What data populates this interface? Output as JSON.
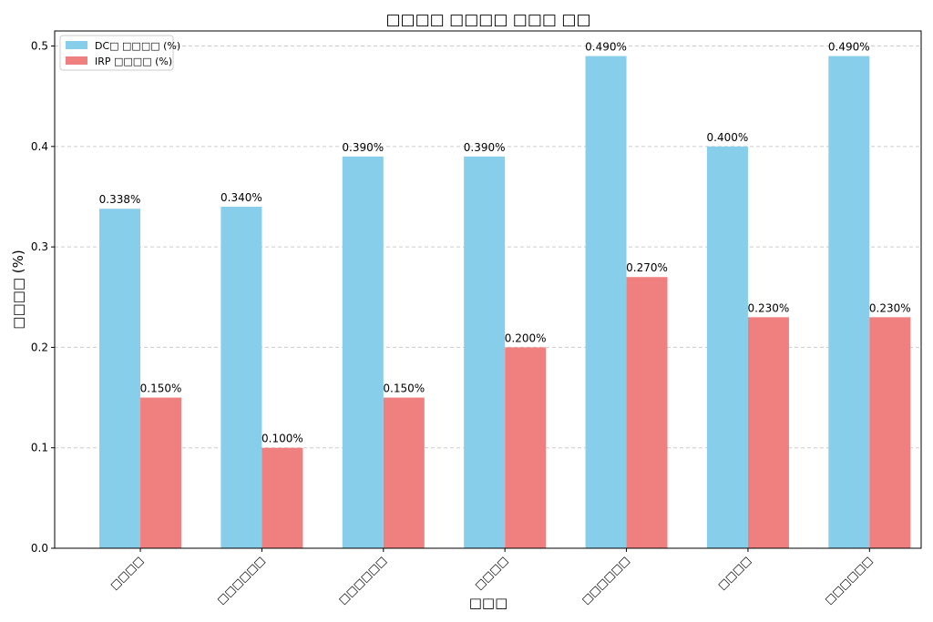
{
  "chart_data": {
    "type": "bar",
    "title": "□□□□ □□□□ □□□ □□",
    "xlabel": "□□□",
    "ylabel": "□□□□ (%)",
    "categories": [
      "□□□□",
      "□□□□□□",
      "□□□□□□",
      "□□□□",
      "□□□□□□",
      "□□□□",
      "□□□□□□"
    ],
    "series": [
      {
        "name": "DC□ □□□□ (%)",
        "color": "#87ceeb",
        "values": [
          0.338,
          0.34,
          0.39,
          0.39,
          0.49,
          0.4,
          0.49
        ],
        "labels": [
          "0.338%",
          "0.340%",
          "0.390%",
          "0.390%",
          "0.490%",
          "0.400%",
          "0.490%"
        ]
      },
      {
        "name": "IRP □□□□ (%)",
        "color": "#f08080",
        "values": [
          0.15,
          0.1,
          0.15,
          0.2,
          0.27,
          0.23,
          0.23
        ],
        "labels": [
          "0.150%",
          "0.100%",
          "0.150%",
          "0.200%",
          "0.270%",
          "0.230%",
          "0.230%"
        ]
      }
    ],
    "ylim": [
      0,
      0.515
    ],
    "yticks": [
      0.0,
      0.1,
      0.2,
      0.3,
      0.4,
      0.5
    ],
    "ytick_labels": [
      "0.0",
      "0.1",
      "0.2",
      "0.3",
      "0.4",
      "0.5"
    ],
    "grid": "y-dashed",
    "legend": "top-left"
  }
}
